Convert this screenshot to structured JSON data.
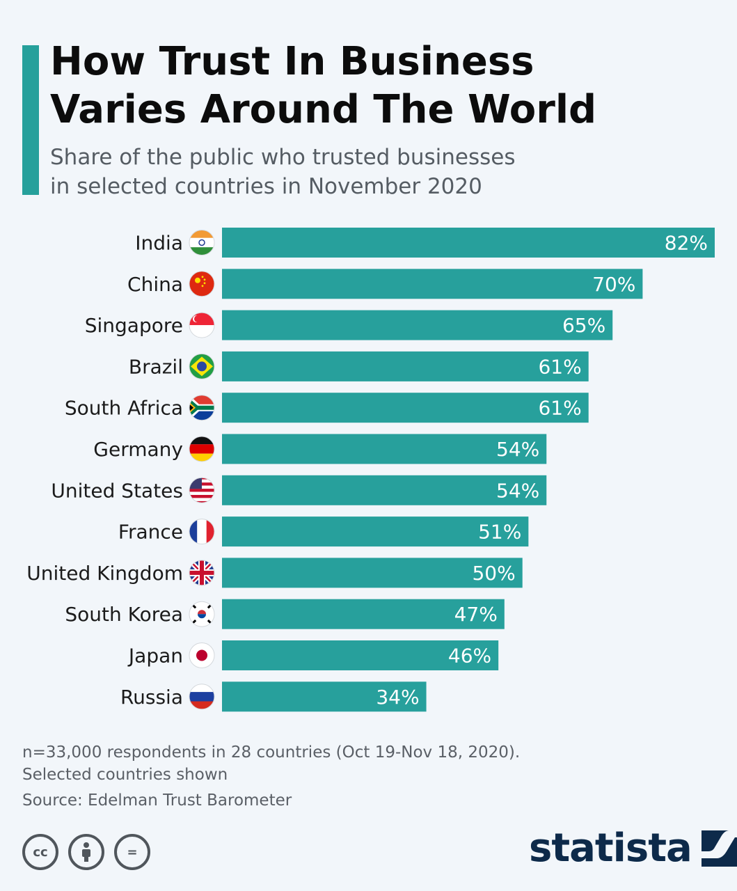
{
  "header": {
    "title_line1": "How Trust In Business",
    "title_line2": "Varies Around The World",
    "subtitle_line1": "Share of the public who trusted businesses",
    "subtitle_line2": "in selected countries in November 2020"
  },
  "chart_data": {
    "type": "bar",
    "orientation": "horizontal",
    "title": "How Trust In Business Varies Around The World",
    "subtitle": "Share of the public who trusted businesses in selected countries in November 2020",
    "xlabel": "",
    "ylabel": "",
    "xlim": [
      0,
      82
    ],
    "grid": false,
    "value_suffix": "%",
    "categories": [
      "India",
      "China",
      "Singapore",
      "Brazil",
      "South Africa",
      "Germany",
      "United States",
      "France",
      "United Kingdom",
      "South Korea",
      "Japan",
      "Russia"
    ],
    "values": [
      82,
      70,
      65,
      61,
      61,
      54,
      54,
      51,
      50,
      47,
      46,
      34
    ],
    "value_labels": [
      "82%",
      "70%",
      "65%",
      "61%",
      "61%",
      "54%",
      "54%",
      "51%",
      "50%",
      "47%",
      "46%",
      "34%"
    ],
    "bar_color": "#27a09c"
  },
  "flags": [
    "india-flag-icon",
    "china-flag-icon",
    "singapore-flag-icon",
    "brazil-flag-icon",
    "south-africa-flag-icon",
    "germany-flag-icon",
    "united-states-flag-icon",
    "france-flag-icon",
    "united-kingdom-flag-icon",
    "south-korea-flag-icon",
    "japan-flag-icon",
    "russia-flag-icon"
  ],
  "footer": {
    "note_line1": "n=33,000 respondents in 28 countries (Oct 19-Nov 18, 2020).",
    "note_line2": "Selected countries shown",
    "source": "Source: Edelman Trust Barometer",
    "license_icons": [
      "cc",
      "by",
      "nd"
    ],
    "cc_label": "cc",
    "nd_label": "=",
    "logo": "statista"
  },
  "colors": {
    "accent": "#26a09b",
    "background": "#f2f6fa",
    "logo": "#0d2a4a"
  }
}
